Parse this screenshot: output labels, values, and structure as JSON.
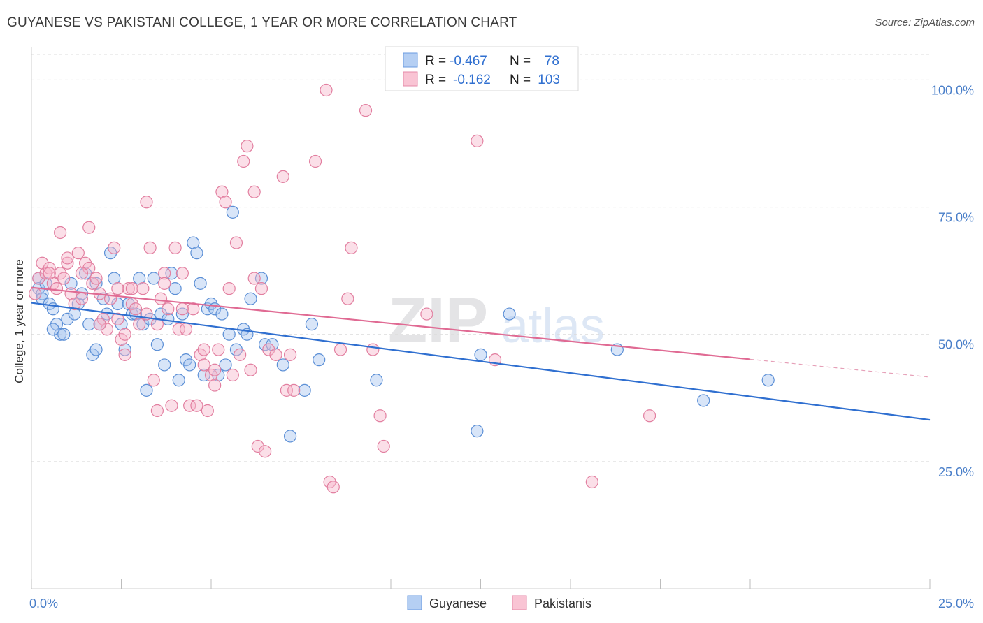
{
  "header": {
    "title": "GUYANESE VS PAKISTANI COLLEGE, 1 YEAR OR MORE CORRELATION CHART",
    "source": "Source: ZipAtlas.com"
  },
  "watermark": {
    "zip": "ZIP",
    "atlas": "atlas"
  },
  "chart_data": {
    "type": "scatter",
    "title": "GUYANESE VS PAKISTANI COLLEGE, 1 YEAR OR MORE CORRELATION CHART",
    "xlabel": "",
    "ylabel": "College, 1 year or more",
    "xlim": [
      0,
      25
    ],
    "ylim": [
      0,
      105
    ],
    "x_tick_labels": [
      "0.0%",
      "25.0%"
    ],
    "y_tick_labels": [
      "100.0%",
      "75.0%",
      "50.0%",
      "25.0%"
    ],
    "y_ticks": [
      100,
      75,
      50,
      25
    ],
    "legend": {
      "r_label": "R =",
      "n_label": "N =",
      "rows": [
        {
          "name": "Guyanese",
          "r": "-0.467",
          "n": "78"
        },
        {
          "name": "Pakistanis",
          "r": "-0.162",
          "n": "103"
        }
      ]
    },
    "series": [
      {
        "name": "Guyanese",
        "color": "#5b8fd6",
        "fill": "#a9c6ef",
        "trend": {
          "x0": 0,
          "y0": 56.2,
          "x1": 25,
          "y1": 33.2
        },
        "points": [
          [
            0.2,
            61
          ],
          [
            0.2,
            59
          ],
          [
            0.3,
            58
          ],
          [
            0.4,
            60
          ],
          [
            0.3,
            57
          ],
          [
            0.5,
            56
          ],
          [
            0.6,
            55
          ],
          [
            0.7,
            52
          ],
          [
            0.8,
            50
          ],
          [
            0.9,
            50
          ],
          [
            1.0,
            53
          ],
          [
            1.1,
            60
          ],
          [
            1.2,
            54
          ],
          [
            1.3,
            56
          ],
          [
            1.4,
            58
          ],
          [
            1.5,
            62
          ],
          [
            1.6,
            52
          ],
          [
            1.7,
            46
          ],
          [
            1.8,
            47
          ],
          [
            1.9,
            52
          ],
          [
            2.0,
            57
          ],
          [
            2.1,
            54
          ],
          [
            2.2,
            66
          ],
          [
            2.3,
            61
          ],
          [
            2.4,
            56
          ],
          [
            2.5,
            52
          ],
          [
            2.6,
            47
          ],
          [
            2.7,
            56
          ],
          [
            2.8,
            54
          ],
          [
            2.9,
            54
          ],
          [
            3.0,
            61
          ],
          [
            3.1,
            52
          ],
          [
            3.2,
            39
          ],
          [
            3.3,
            53
          ],
          [
            3.4,
            61
          ],
          [
            3.5,
            48
          ],
          [
            3.6,
            54
          ],
          [
            3.7,
            44
          ],
          [
            3.8,
            53
          ],
          [
            3.9,
            62
          ],
          [
            4.0,
            59
          ],
          [
            4.1,
            41
          ],
          [
            4.2,
            54
          ],
          [
            4.3,
            45
          ],
          [
            4.4,
            44
          ],
          [
            4.5,
            68
          ],
          [
            4.6,
            66
          ],
          [
            4.7,
            60
          ],
          [
            4.8,
            42
          ],
          [
            4.9,
            55
          ],
          [
            5.0,
            56
          ],
          [
            5.1,
            55
          ],
          [
            5.2,
            42
          ],
          [
            5.3,
            54
          ],
          [
            5.4,
            44
          ],
          [
            5.5,
            50
          ],
          [
            5.6,
            74
          ],
          [
            5.7,
            47
          ],
          [
            5.9,
            51
          ],
          [
            6.0,
            50
          ],
          [
            6.1,
            57
          ],
          [
            6.4,
            61
          ],
          [
            6.5,
            48
          ],
          [
            6.7,
            48
          ],
          [
            7.0,
            44
          ],
          [
            7.2,
            30
          ],
          [
            7.6,
            39
          ],
          [
            7.8,
            52
          ],
          [
            8.0,
            45
          ],
          [
            9.6,
            41
          ],
          [
            12.4,
            31
          ],
          [
            12.5,
            46
          ],
          [
            13.3,
            54
          ],
          [
            16.3,
            47
          ],
          [
            18.7,
            37
          ],
          [
            20.5,
            41
          ],
          [
            0.6,
            51
          ],
          [
            1.8,
            60
          ]
        ]
      },
      {
        "name": "Pakistanis",
        "color": "#e27fa0",
        "fill": "#f6b8cc",
        "trend": {
          "x0": 0,
          "y0": 59.2,
          "x1": 20.0,
          "y1": 45.1
        },
        "trend_dashed": {
          "x0": 20.0,
          "y0": 45.1,
          "x1": 25,
          "y1": 41.6
        },
        "points": [
          [
            0.1,
            58
          ],
          [
            0.2,
            61
          ],
          [
            0.3,
            64
          ],
          [
            0.4,
            62
          ],
          [
            0.5,
            63
          ],
          [
            0.6,
            60
          ],
          [
            0.7,
            59
          ],
          [
            0.8,
            62
          ],
          [
            0.9,
            61
          ],
          [
            1.0,
            64
          ],
          [
            1.1,
            58
          ],
          [
            1.2,
            56
          ],
          [
            1.3,
            66
          ],
          [
            1.4,
            57
          ],
          [
            1.5,
            64
          ],
          [
            1.6,
            63
          ],
          [
            1.7,
            60
          ],
          [
            1.8,
            61
          ],
          [
            1.9,
            58
          ],
          [
            2.0,
            53
          ],
          [
            2.1,
            51
          ],
          [
            2.2,
            57
          ],
          [
            2.3,
            67
          ],
          [
            2.4,
            53
          ],
          [
            2.5,
            49
          ],
          [
            2.6,
            46
          ],
          [
            2.7,
            59
          ],
          [
            2.8,
            56
          ],
          [
            2.9,
            55
          ],
          [
            3.0,
            52
          ],
          [
            3.1,
            59
          ],
          [
            3.2,
            76
          ],
          [
            3.3,
            67
          ],
          [
            3.4,
            41
          ],
          [
            3.5,
            35
          ],
          [
            3.6,
            57
          ],
          [
            3.7,
            62
          ],
          [
            3.8,
            55
          ],
          [
            3.9,
            36
          ],
          [
            4.0,
            67
          ],
          [
            4.1,
            51
          ],
          [
            4.2,
            62
          ],
          [
            4.3,
            51
          ],
          [
            4.4,
            36
          ],
          [
            4.5,
            55
          ],
          [
            4.6,
            36
          ],
          [
            4.7,
            46
          ],
          [
            4.8,
            44
          ],
          [
            4.9,
            35
          ],
          [
            5.0,
            42
          ],
          [
            5.1,
            43
          ],
          [
            5.2,
            47
          ],
          [
            5.3,
            78
          ],
          [
            5.4,
            76
          ],
          [
            5.5,
            59
          ],
          [
            5.6,
            42
          ],
          [
            5.7,
            68
          ],
          [
            5.8,
            46
          ],
          [
            5.9,
            84
          ],
          [
            6.0,
            87
          ],
          [
            6.1,
            43
          ],
          [
            6.2,
            78
          ],
          [
            6.3,
            28
          ],
          [
            6.4,
            59
          ],
          [
            6.5,
            27
          ],
          [
            6.6,
            47
          ],
          [
            6.8,
            46
          ],
          [
            7.0,
            81
          ],
          [
            7.1,
            39
          ],
          [
            7.2,
            46
          ],
          [
            7.3,
            39
          ],
          [
            7.9,
            84
          ],
          [
            8.2,
            98
          ],
          [
            8.3,
            21
          ],
          [
            8.4,
            20
          ],
          [
            8.6,
            47
          ],
          [
            8.8,
            57
          ],
          [
            8.9,
            67
          ],
          [
            9.3,
            94
          ],
          [
            9.5,
            47
          ],
          [
            9.7,
            34
          ],
          [
            9.8,
            28
          ],
          [
            11.0,
            54
          ],
          [
            12.4,
            88
          ],
          [
            12.9,
            45
          ],
          [
            15.6,
            21
          ],
          [
            17.2,
            34
          ],
          [
            0.8,
            70
          ],
          [
            1.6,
            71
          ],
          [
            1.0,
            65
          ],
          [
            2.8,
            59
          ],
          [
            3.2,
            54
          ],
          [
            3.7,
            60
          ],
          [
            4.2,
            55
          ],
          [
            2.4,
            59
          ],
          [
            1.4,
            62
          ],
          [
            0.5,
            62
          ],
          [
            1.9,
            52
          ],
          [
            2.6,
            50
          ],
          [
            3.5,
            52
          ],
          [
            4.8,
            47
          ],
          [
            5.1,
            40
          ],
          [
            6.2,
            61
          ]
        ]
      }
    ]
  },
  "bottom_legend": [
    "Guyanese",
    "Pakistanis"
  ]
}
